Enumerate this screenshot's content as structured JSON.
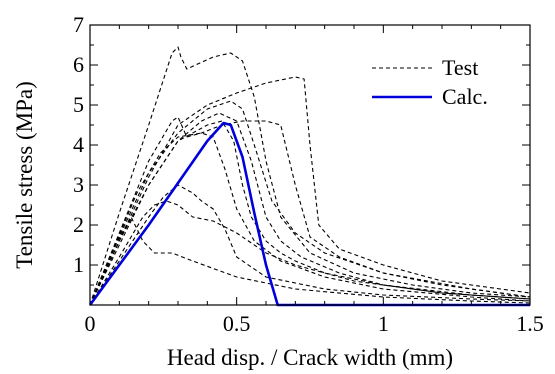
{
  "chart_data": {
    "type": "line",
    "title": "",
    "xlabel": "Head disp. / Crack width (mm)",
    "ylabel": "Tensile stress (MPa)",
    "xlim": [
      0,
      1.5
    ],
    "ylim": [
      0,
      7
    ],
    "x_ticks": [
      0,
      0.5,
      1,
      1.5
    ],
    "x_tick_labels": [
      "0",
      "0.5",
      "1",
      "1.5"
    ],
    "y_ticks": [
      1,
      2,
      3,
      4,
      5,
      6,
      7
    ],
    "y_tick_labels": [
      "1",
      "2",
      "3",
      "4",
      "5",
      "6",
      "7"
    ],
    "grid": false,
    "legend": {
      "position": "top-right",
      "entries": [
        "Test",
        "Calc."
      ]
    },
    "colors": {
      "test": "#000000",
      "calc": "#0000dd"
    },
    "series": [
      {
        "name": "Test",
        "style": "dashed",
        "x": [
          0,
          0.1,
          0.2,
          0.28,
          0.3,
          0.31,
          0.33,
          0.42,
          0.48,
          0.52,
          0.56,
          0.6,
          0.65,
          0.75,
          0.9,
          1.1,
          1.3,
          1.5
        ],
        "y": [
          0,
          2.3,
          4.5,
          6.3,
          6.45,
          6.2,
          5.9,
          6.2,
          6.3,
          6.1,
          5.2,
          3.6,
          2.2,
          1.3,
          0.8,
          0.5,
          0.3,
          0.2
        ]
      },
      {
        "name": "Test",
        "style": "dashed",
        "x": [
          0,
          0.1,
          0.2,
          0.3,
          0.4,
          0.5,
          0.6,
          0.7,
          0.73,
          0.75,
          0.78,
          0.85,
          1.0,
          1.2,
          1.5
        ],
        "y": [
          0,
          1.6,
          3.2,
          4.5,
          5.0,
          5.3,
          5.55,
          5.7,
          5.65,
          4.0,
          2.0,
          1.4,
          1.0,
          0.6,
          0.3
        ]
      },
      {
        "name": "Test",
        "style": "dashed",
        "x": [
          0,
          0.1,
          0.2,
          0.28,
          0.3,
          0.33,
          0.38,
          0.45,
          0.52,
          0.6,
          0.65,
          0.7,
          0.75,
          0.85,
          1.0,
          1.3,
          1.5
        ],
        "y": [
          0,
          1.8,
          3.6,
          4.6,
          4.7,
          4.2,
          4.3,
          4.5,
          4.6,
          4.6,
          4.5,
          3.0,
          1.7,
          1.2,
          0.8,
          0.4,
          0.2
        ]
      },
      {
        "name": "Test",
        "style": "dashed",
        "x": [
          0,
          0.1,
          0.2,
          0.3,
          0.4,
          0.48,
          0.52,
          0.56,
          0.62,
          0.7,
          0.8,
          1.0,
          1.2,
          1.5
        ],
        "y": [
          0,
          1.7,
          3.3,
          4.3,
          4.9,
          5.1,
          4.9,
          4.0,
          2.6,
          1.8,
          1.3,
          0.8,
          0.5,
          0.2
        ]
      },
      {
        "name": "Test",
        "style": "dashed",
        "x": [
          0,
          0.1,
          0.2,
          0.3,
          0.38,
          0.44,
          0.5,
          0.55,
          0.6,
          0.65,
          0.72,
          0.85,
          1.0,
          1.2,
          1.5
        ],
        "y": [
          0,
          1.6,
          3.0,
          4.1,
          4.6,
          4.8,
          4.6,
          3.6,
          2.2,
          1.6,
          1.2,
          0.8,
          0.5,
          0.3,
          0.15
        ]
      },
      {
        "name": "Test",
        "style": "dashed",
        "x": [
          0,
          0.1,
          0.2,
          0.3,
          0.4,
          0.45,
          0.49,
          0.52,
          0.55,
          0.6,
          0.65,
          0.7,
          0.8,
          1.0,
          1.3,
          1.5
        ],
        "y": [
          0,
          1.5,
          3.0,
          4.1,
          4.5,
          4.6,
          4.1,
          3.0,
          2.2,
          1.6,
          1.3,
          1.1,
          0.8,
          0.5,
          0.25,
          0.15
        ]
      },
      {
        "name": "Test",
        "style": "dashed",
        "x": [
          0,
          0.08,
          0.16,
          0.24,
          0.3,
          0.38,
          0.42,
          0.46,
          0.5,
          0.56,
          0.65,
          0.8,
          1.0,
          1.3,
          1.5
        ],
        "y": [
          0,
          1.4,
          2.8,
          3.8,
          4.2,
          4.3,
          4.2,
          3.4,
          2.4,
          1.6,
          1.1,
          0.7,
          0.4,
          0.2,
          0.1
        ]
      },
      {
        "name": "Test",
        "style": "dashed",
        "x": [
          0,
          0.1,
          0.2,
          0.25,
          0.3,
          0.35,
          0.38,
          0.42,
          0.46,
          0.5,
          0.6,
          0.8,
          1.0,
          1.3,
          1.5
        ],
        "y": [
          0,
          1.1,
          2.2,
          2.7,
          3.0,
          2.8,
          2.6,
          2.4,
          1.9,
          1.2,
          0.7,
          0.4,
          0.25,
          0.15,
          0.1
        ]
      },
      {
        "name": "Test",
        "style": "dashed",
        "x": [
          0,
          0.1,
          0.18,
          0.22,
          0.26,
          0.3,
          0.35,
          0.42,
          0.5,
          0.6,
          0.7,
          0.9,
          1.2,
          1.5
        ],
        "y": [
          0,
          1.2,
          2.2,
          2.5,
          2.6,
          2.5,
          2.2,
          2.1,
          1.8,
          1.3,
          1.0,
          0.6,
          0.3,
          0.15
        ]
      },
      {
        "name": "Test",
        "style": "dashed",
        "x": [
          0,
          0.08,
          0.14,
          0.18,
          0.22,
          0.28,
          0.35,
          0.5,
          0.7,
          1.0,
          1.3,
          1.5
        ],
        "y": [
          0,
          1.4,
          2.2,
          1.6,
          1.3,
          1.3,
          1.1,
          0.7,
          0.4,
          0.2,
          0.1,
          0.05
        ]
      },
      {
        "name": "Calc.",
        "style": "solid",
        "x": [
          0,
          0.1,
          0.2,
          0.3,
          0.4,
          0.455,
          0.48,
          0.52,
          0.56,
          0.6,
          0.64,
          0.7,
          1.0,
          1.5
        ],
        "y": [
          0,
          1.0,
          2.0,
          3.05,
          4.1,
          4.55,
          4.5,
          3.7,
          2.3,
          1.0,
          0.0,
          0.0,
          0.0,
          0.0
        ]
      }
    ]
  }
}
